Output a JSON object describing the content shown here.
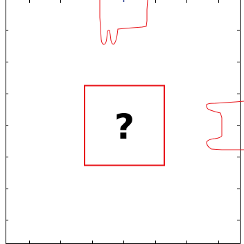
{
  "puzzle": {
    "mystery_label": "?",
    "colors": {
      "contour": "#e8141a",
      "axis": "#000000",
      "background": "#ffffff"
    }
  }
}
